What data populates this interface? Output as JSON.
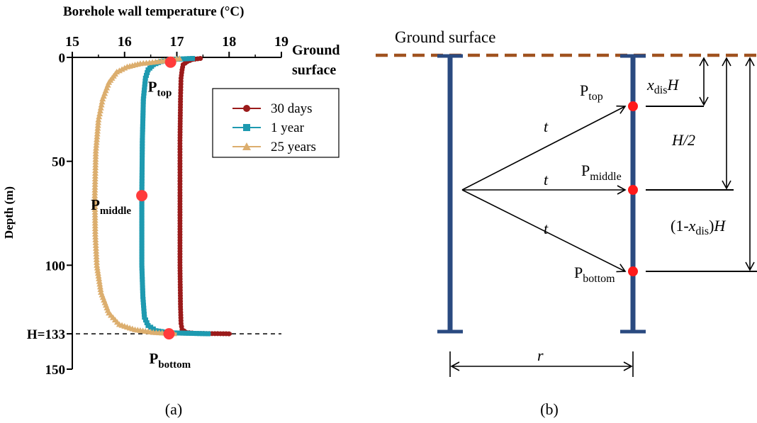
{
  "panel_a": {
    "label": "(a)",
    "chart_data": {
      "type": "line",
      "title": "Borehole wall temperature (°C)",
      "xlabel": "Borehole wall temperature (°C)",
      "ylabel": "Depth (m)",
      "xlim": [
        15,
        19
      ],
      "ylim": [
        0,
        150
      ],
      "y_inverted": true,
      "x_ticks": [
        15,
        16,
        17,
        18,
        19
      ],
      "y_ticks": [
        0,
        50,
        100,
        150
      ],
      "y_tick_labels": [
        "0",
        "50",
        "100",
        "H=133",
        "150"
      ],
      "y_tick_positions": [
        0,
        50,
        100,
        133,
        150
      ],
      "ground_surface_label": [
        "Ground",
        "surface"
      ],
      "h_line": {
        "y": 133,
        "style": "dashed"
      },
      "legend": {
        "position": "top-right"
      },
      "series": [
        {
          "name": "30 days",
          "color": "#9b1b1b",
          "marker": "circle",
          "points": [
            [
              17.45,
              0.5
            ],
            [
              17.3,
              1
            ],
            [
              17.2,
              2
            ],
            [
              17.12,
              3.5
            ],
            [
              17.1,
              6
            ],
            [
              17.08,
              10
            ],
            [
              17.07,
              20
            ],
            [
              17.06,
              40
            ],
            [
              17.06,
              66.5
            ],
            [
              17.06,
              100
            ],
            [
              17.07,
              120
            ],
            [
              17.08,
              128
            ],
            [
              17.1,
              131
            ],
            [
              17.18,
              132.3
            ],
            [
              17.35,
              132.8
            ],
            [
              18.05,
              133
            ]
          ]
        },
        {
          "name": "1 year",
          "color": "#1e9ab0",
          "marker": "square",
          "points": [
            [
              17.3,
              0.5
            ],
            [
              16.9,
              1
            ],
            [
              16.7,
              2
            ],
            [
              16.55,
              3.5
            ],
            [
              16.45,
              6
            ],
            [
              16.4,
              10
            ],
            [
              16.36,
              20
            ],
            [
              16.34,
              40
            ],
            [
              16.33,
              66.5
            ],
            [
              16.33,
              100
            ],
            [
              16.35,
              115
            ],
            [
              16.38,
              125
            ],
            [
              16.45,
              129
            ],
            [
              16.6,
              131.5
            ],
            [
              16.85,
              132.5
            ],
            [
              17.65,
              133
            ]
          ]
        },
        {
          "name": "25 years",
          "color": "#dcae6e",
          "marker": "triangle",
          "points": [
            [
              17.05,
              0.5
            ],
            [
              16.65,
              2
            ],
            [
              16.3,
              3
            ],
            [
              16.05,
              4.5
            ],
            [
              15.85,
              7
            ],
            [
              15.7,
              12
            ],
            [
              15.58,
              20
            ],
            [
              15.5,
              30
            ],
            [
              15.45,
              45
            ],
            [
              15.43,
              66.5
            ],
            [
              15.44,
              85
            ],
            [
              15.47,
              100
            ],
            [
              15.55,
              113
            ],
            [
              15.7,
              123
            ],
            [
              15.9,
              128.5
            ],
            [
              16.2,
              131
            ],
            [
              16.55,
              132.3
            ],
            [
              17.0,
              133
            ]
          ]
        }
      ],
      "points_of_interest": [
        {
          "label_main": "P",
          "label_sub": "top",
          "x": 16.88,
          "y": 2.3
        },
        {
          "label_main": "P",
          "label_sub": "middle",
          "x": 16.33,
          "y": 66.5
        },
        {
          "label_main": "P",
          "label_sub": "bottom",
          "x": 16.85,
          "y": 133
        }
      ]
    }
  },
  "panel_b": {
    "label": "(b)",
    "ground_label": "Ground surface",
    "t_label": "t",
    "r_label": "r",
    "p_main": "P",
    "p_top_sub": "top",
    "p_middle_sub": "middle",
    "p_bottom_sub": "bottom",
    "dim_top_x": "x",
    "dim_top_sub": "dis",
    "dim_top_H": "H",
    "dim_mid": "H/2",
    "dim_bot_prefix": "(1-",
    "dim_bot_x": "x",
    "dim_bot_sub": "dis",
    "dim_bot_suffix": ")",
    "dim_bot_H": "H",
    "colors": {
      "pipe": "#2a4a80",
      "ground": "#a0521f",
      "point": "#ff1a1a"
    }
  }
}
